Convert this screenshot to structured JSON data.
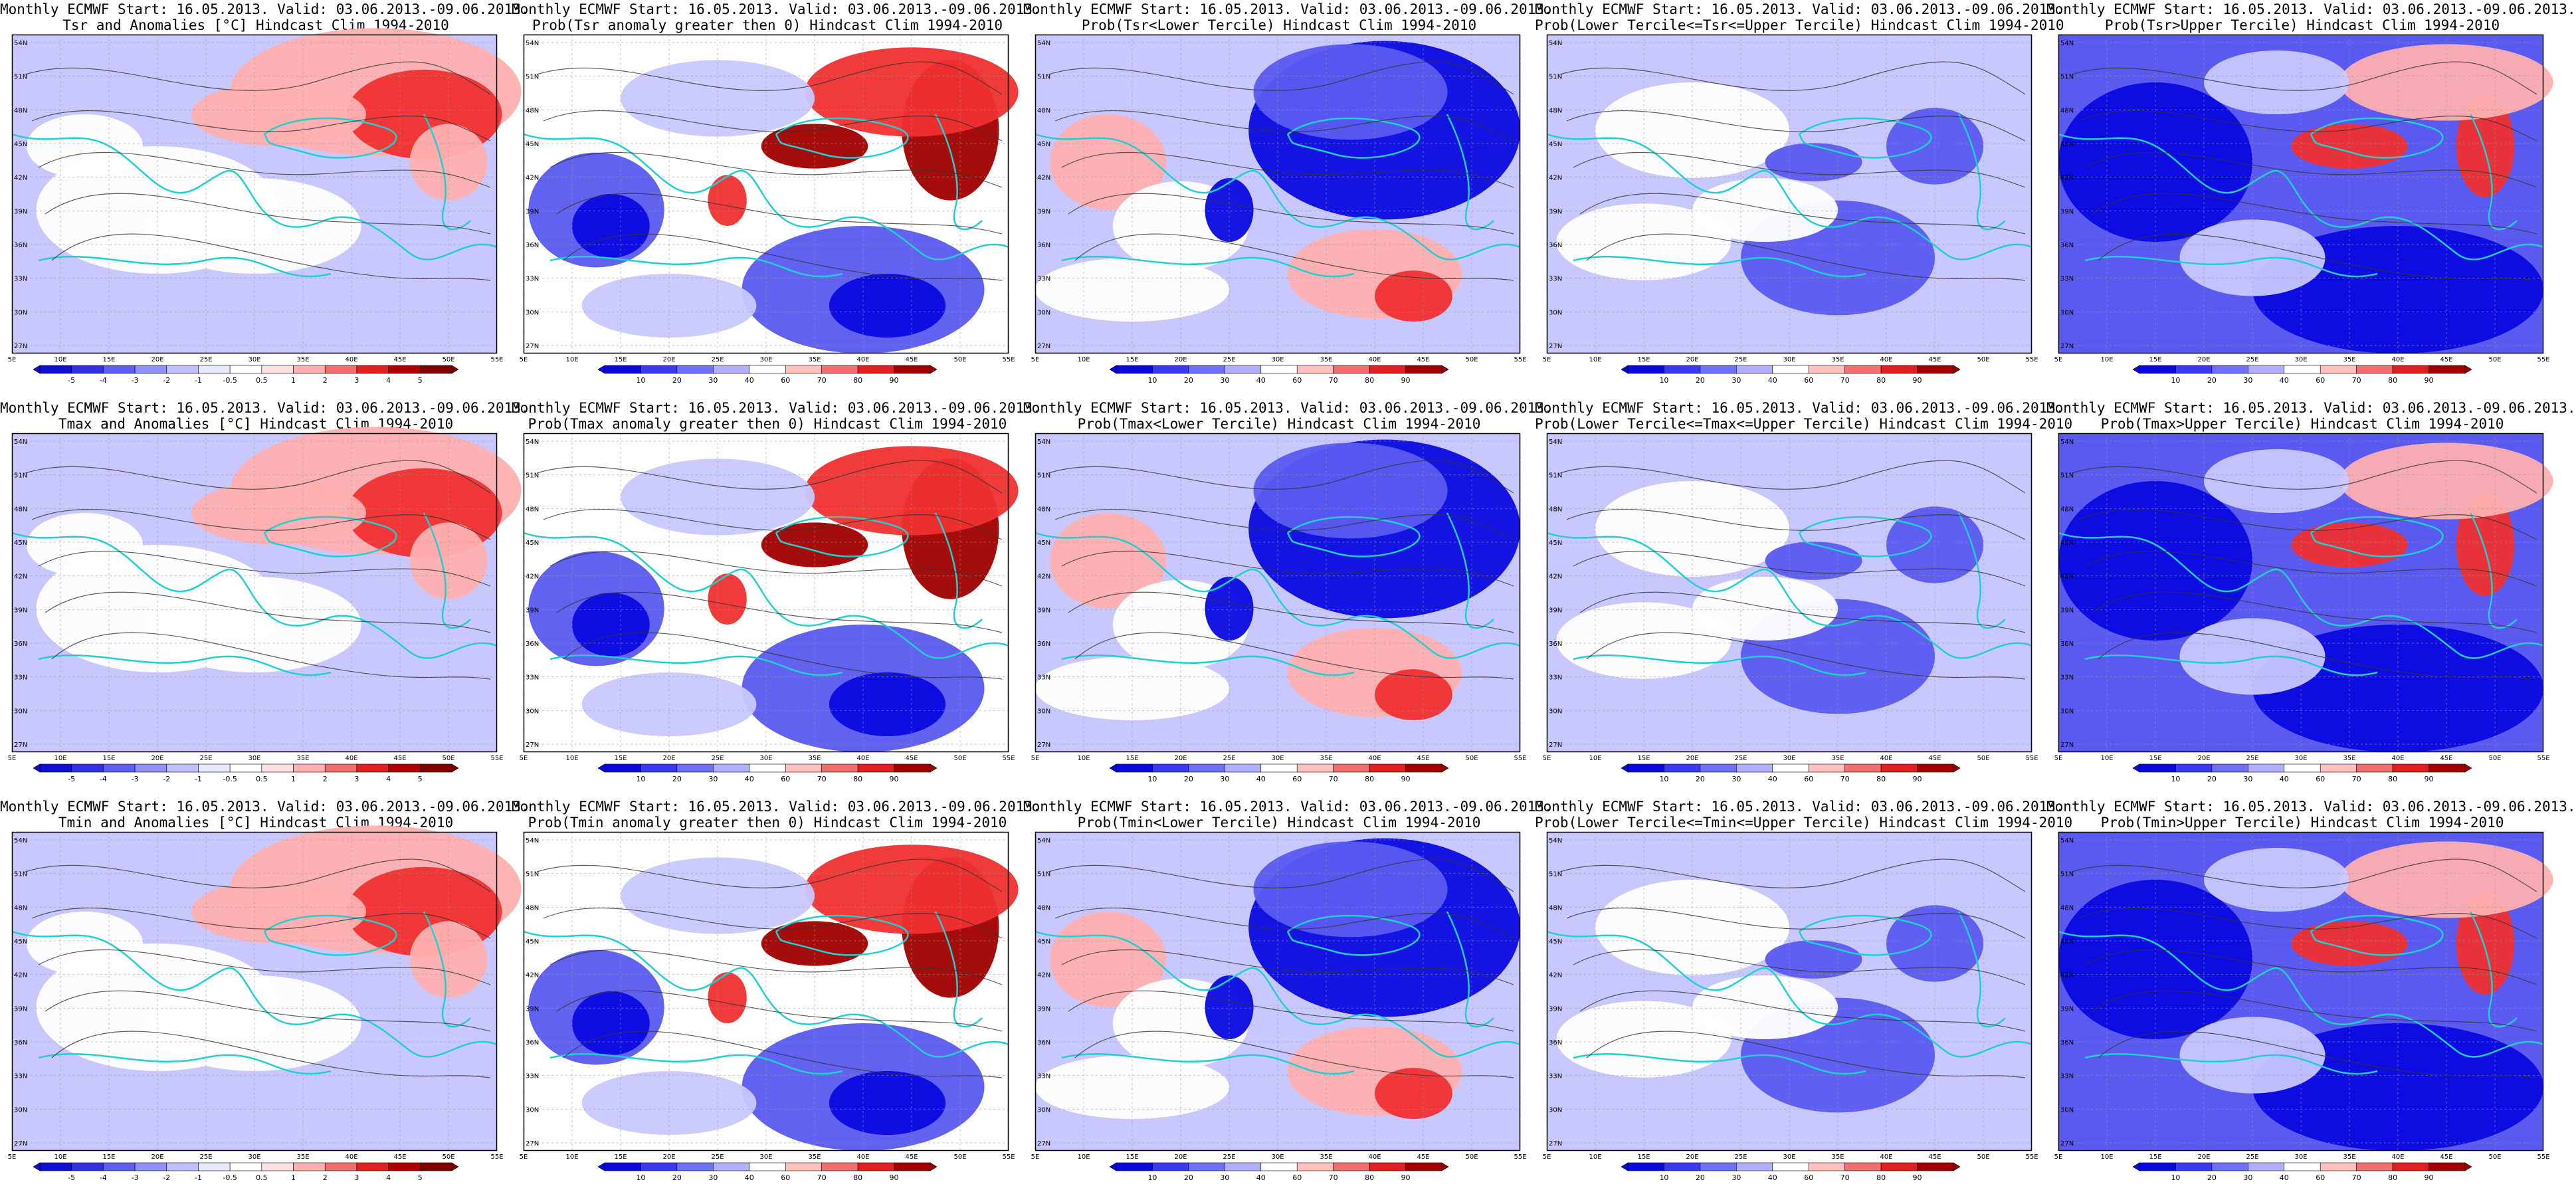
{
  "source_line": "Monthly ECMWF Start: 16.05.2013. Valid: 03.06.2013.-09.06.2013.",
  "lat_labels": [
    "54N",
    "51N",
    "48N",
    "45N",
    "42N",
    "39N",
    "36N",
    "33N",
    "30N",
    "27N"
  ],
  "lon_labels": [
    "5E",
    "10E",
    "15E",
    "20E",
    "25E",
    "30E",
    "35E",
    "40E",
    "45E",
    "50E",
    "55E"
  ],
  "anomaly_scale": [
    "-5",
    "-4",
    "-3",
    "-2",
    "-1",
    "-0.5",
    "0.5",
    "1",
    "2",
    "3",
    "4",
    "5"
  ],
  "prob_scale": [
    "10",
    "20",
    "30",
    "40",
    "60",
    "70",
    "80",
    "90"
  ],
  "colors": {
    "deep_blue": "#0a0ae0",
    "mid_blue": "#5a5af0",
    "light_blue": "#c8c8ff",
    "white": "#ffffff",
    "light_red": "#ffb0b0",
    "mid_red": "#f03030",
    "deep_red": "#a00000",
    "coast": "#20d0d0",
    "contour": "#333333"
  },
  "rows": [
    {
      "variable": "Tsr",
      "panels": [
        {
          "type": "anomaly",
          "title": "Tsr and Anomalies [°C] Hindcast Clim 1994-2010"
        },
        {
          "type": "prob_pos",
          "title": "Prob(Tsr anomaly greater then 0) Hindcast Clim 1994-2010"
        },
        {
          "type": "prob_lower",
          "title": "Prob(Tsr<Lower Tercile) Hindcast Clim 1994-2010"
        },
        {
          "type": "prob_mid",
          "title": "Prob(Lower Tercile<=Tsr<=Upper Tercile) Hindcast Clim 1994-2010"
        },
        {
          "type": "prob_upper",
          "title": "Prob(Tsr>Upper Tercile) Hindcast Clim 1994-2010"
        }
      ]
    },
    {
      "variable": "Tmax",
      "panels": [
        {
          "type": "anomaly",
          "title": "Tmax and Anomalies [°C] Hindcast Clim 1994-2010"
        },
        {
          "type": "prob_pos",
          "title": "Prob(Tmax anomaly greater then 0) Hindcast Clim 1994-2010"
        },
        {
          "type": "prob_lower",
          "title": "Prob(Tmax<Lower Tercile) Hindcast Clim 1994-2010"
        },
        {
          "type": "prob_mid",
          "title": "Prob(Lower Tercile<=Tmax<=Upper Tercile) Hindcast Clim 1994-2010"
        },
        {
          "type": "prob_upper",
          "title": "Prob(Tmax>Upper Tercile) Hindcast Clim 1994-2010"
        }
      ]
    },
    {
      "variable": "Tmin",
      "panels": [
        {
          "type": "anomaly",
          "title": "Tmin and Anomalies [°C] Hindcast Clim 1994-2010"
        },
        {
          "type": "prob_pos",
          "title": "Prob(Tmin anomaly greater then 0) Hindcast Clim 1994-2010"
        },
        {
          "type": "prob_lower",
          "title": "Prob(Tmin<Lower Tercile) Hindcast Clim 1994-2010"
        },
        {
          "type": "prob_mid",
          "title": "Prob(Lower Tercile<=Tmin<=Upper Tercile) Hindcast Clim 1994-2010"
        },
        {
          "type": "prob_upper",
          "title": "Prob(Tmin>Upper Tercile) Hindcast Clim 1994-2010"
        }
      ]
    }
  ]
}
